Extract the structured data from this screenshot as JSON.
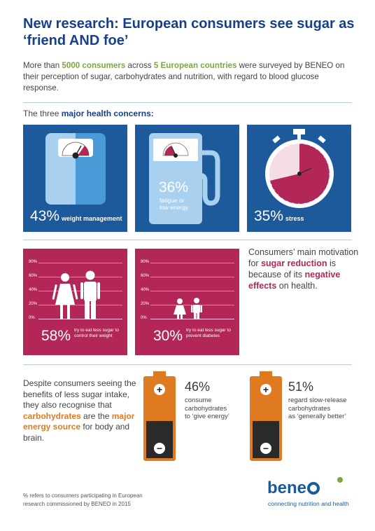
{
  "header": {
    "title": "New research: European consumers see sugar as ‘friend AND foe’",
    "intro_1": "More than ",
    "intro_hl_1": "5000 consumers",
    "intro_2": " across ",
    "intro_hl_2": "5 European countries",
    "intro_3": " were surveyed by BENEO on their perception of sugar, carbohydrates and nutrition, with regard to blood glucose response."
  },
  "concerns": {
    "heading_1": "The three ",
    "heading_bold": "major health concerns:",
    "items": [
      {
        "value": "43%",
        "label": "weight management",
        "icon": "scale-icon"
      },
      {
        "value": "36%",
        "label_1": "fatigue or",
        "label_2": "low energy",
        "icon": "fuel-pump-icon"
      },
      {
        "value": "35%",
        "label": "stress",
        "icon": "stopwatch-icon"
      }
    ]
  },
  "sugar_charts": {
    "y_ticks": [
      "80%",
      "60%",
      "40%",
      "20%",
      "0%"
    ],
    "items": [
      {
        "value": "58%",
        "label_1": "try to eat less sugar to",
        "label_2": "control their weight",
        "icon": "adults-icon"
      },
      {
        "value": "30%",
        "label_1": "try to eat less sugar to",
        "label_2": "prevent diabetes",
        "icon": "children-icon"
      }
    ]
  },
  "motivation": {
    "t1": "Consumers’ main motivation for ",
    "b1": "sugar reduction",
    "t2": " is because of its ",
    "b2": "negative effects",
    "t3": " on health."
  },
  "carbs": {
    "t1": "Despite consumers seeing the benefits of less sugar intake, they also recognise that ",
    "b1": "carbohydrates",
    "t2": " are the ",
    "b2": "major energy source",
    "t3": " for body and brain.",
    "batteries": [
      {
        "value": "46%",
        "l1": "consume",
        "l2": "carbohydrates",
        "l3": "to ‘give energy’",
        "plus": "+",
        "minus": "−"
      },
      {
        "value": "51%",
        "l1": "regard slow-release",
        "l2": "carbohydrates",
        "l3": "as ‘generally better’",
        "plus": "+",
        "minus": "−"
      }
    ]
  },
  "footer": {
    "note_1": "% refers to consumers participating in European",
    "note_2": "research commissioned by BENEO in 2015",
    "logo": "bene",
    "tagline": "connecting nutrition and health"
  },
  "colors": {
    "blue": "#1c5a9b",
    "crimson": "#b22758",
    "orange": "#e07a20",
    "green": "#7aa83a"
  }
}
